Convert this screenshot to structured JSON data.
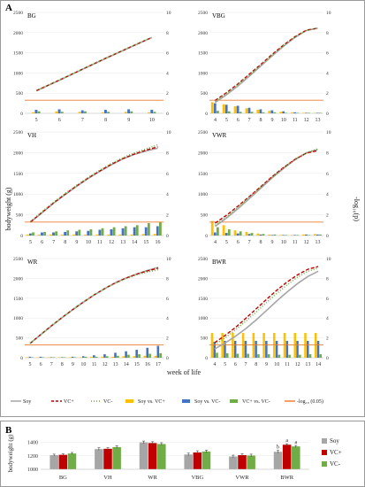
{
  "figure": {
    "panel_a_label": "A",
    "panel_b_label": "B",
    "left_axis_label": "bodyweight (g)",
    "right_axis_label": "-log₁₀(p)",
    "bottom_axis_label": "week of life"
  },
  "legend": {
    "items": [
      {
        "label": "Soy",
        "color": "#a6a6a6",
        "kind": "line-solid"
      },
      {
        "label": "VC+",
        "color": "#c00000",
        "kind": "line-dash"
      },
      {
        "label": "VC-",
        "color": "#70ad47",
        "kind": "line-dot"
      },
      {
        "label": "Soy vs. VC+",
        "color": "#ffc000",
        "kind": "bar"
      },
      {
        "label": "Soy vs. VC-",
        "color": "#4472c4",
        "kind": "bar"
      },
      {
        "label": "VC+ vs. VC-",
        "color": "#70ad47",
        "kind": "bar"
      },
      {
        "label": "-log₁₀ (0.05)",
        "color": "#ed7d31",
        "kind": "line-solid"
      }
    ]
  },
  "colors": {
    "soy": "#a6a6a6",
    "vcplus": "#c00000",
    "vcminus": "#70ad47",
    "soy_vs_vcplus": "#ffc000",
    "soy_vs_vcminus": "#4472c4",
    "vcplus_vs_vcminus": "#70ad47",
    "threshold": "#ed7d31"
  },
  "chart_data": [
    {
      "type": "line",
      "panel": "BG",
      "x": [
        5,
        6,
        7,
        8,
        9,
        10
      ],
      "ylim": [
        0,
        2500
      ],
      "y_ticks": [
        0,
        500,
        1000,
        1500,
        2000,
        2500
      ],
      "y2lim": [
        0,
        10
      ],
      "y2_ticks": [
        0,
        2,
        4,
        6,
        8,
        10
      ],
      "series": [
        {
          "name": "Soy",
          "values": [
            560,
            820,
            1090,
            1360,
            1620,
            1880
          ]
        },
        {
          "name": "VC+",
          "values": [
            560,
            825,
            1095,
            1365,
            1625,
            1880
          ]
        },
        {
          "name": "VC-",
          "values": [
            565,
            830,
            1100,
            1370,
            1630,
            1885
          ]
        }
      ],
      "pvalues": [
        {
          "name": "Soy vs. VC+",
          "values": [
            0.1,
            0.2,
            0.15,
            0.1,
            0.15,
            0.1
          ]
        },
        {
          "name": "Soy vs. VC-",
          "values": [
            0.35,
            0.4,
            0.3,
            0.35,
            0.4,
            0.35
          ]
        },
        {
          "name": "VC+ vs. VC-",
          "values": [
            0.2,
            0.15,
            0.2,
            0.15,
            0.2,
            0.15
          ]
        }
      ],
      "threshold": 1.3
    },
    {
      "type": "line",
      "panel": "VBG",
      "x": [
        4,
        5,
        6,
        7,
        8,
        9,
        10,
        11,
        12,
        13
      ],
      "ylim": [
        0,
        2500
      ],
      "y_ticks": [
        0,
        500,
        1000,
        1500,
        2000,
        2500
      ],
      "y2lim": [
        0,
        10
      ],
      "y2_ticks": [
        0,
        2,
        4,
        6,
        8,
        10
      ],
      "series": [
        {
          "name": "Soy",
          "values": [
            270,
            460,
            680,
            920,
            1170,
            1420,
            1660,
            1880,
            2050,
            2110
          ]
        },
        {
          "name": "VC+",
          "values": [
            320,
            510,
            730,
            970,
            1210,
            1460,
            1690,
            1900,
            2060,
            2110
          ]
        },
        {
          "name": "VC-",
          "values": [
            300,
            490,
            710,
            950,
            1195,
            1445,
            1680,
            1895,
            2055,
            2115
          ]
        }
      ],
      "pvalues": [
        {
          "name": "Soy vs. VC+",
          "values": [
            1.1,
            0.9,
            0.7,
            0.5,
            0.35,
            0.25,
            0.15,
            0.1,
            0.05,
            0.05
          ]
        },
        {
          "name": "Soy vs. VC-",
          "values": [
            1.0,
            0.85,
            0.75,
            0.55,
            0.4,
            0.3,
            0.2,
            0.1,
            0.05,
            0.05
          ]
        },
        {
          "name": "VC+ vs. VC-",
          "values": [
            0.25,
            0.2,
            0.15,
            0.15,
            0.1,
            0.1,
            0.05,
            0.05,
            0.05,
            0.05
          ]
        }
      ],
      "threshold": 1.3
    },
    {
      "type": "line",
      "panel": "VH",
      "x": [
        5,
        6,
        7,
        8,
        9,
        10,
        11,
        12,
        13,
        14,
        15,
        16
      ],
      "ylim": [
        0,
        2500
      ],
      "y_ticks": [
        0,
        500,
        1000,
        1500,
        2000,
        2500
      ],
      "y2lim": [
        0,
        10
      ],
      "y2_ticks": [
        0,
        2,
        4,
        6,
        8,
        10
      ],
      "series": [
        {
          "name": "Soy",
          "values": [
            320,
            550,
            780,
            990,
            1190,
            1380,
            1550,
            1710,
            1850,
            1960,
            2040,
            2110
          ]
        },
        {
          "name": "VC+",
          "values": [
            330,
            560,
            790,
            1000,
            1200,
            1390,
            1560,
            1720,
            1860,
            1970,
            2060,
            2140
          ]
        },
        {
          "name": "VC-",
          "values": [
            340,
            575,
            805,
            1015,
            1215,
            1405,
            1580,
            1740,
            1880,
            1995,
            2090,
            2190
          ]
        }
      ],
      "pvalues": [
        {
          "name": "Soy vs. VC+",
          "values": [
            0.1,
            0.1,
            0.1,
            0.1,
            0.1,
            0.1,
            0.1,
            0.1,
            0.1,
            0.1,
            0.15,
            0.15
          ]
        },
        {
          "name": "Soy vs. VC-",
          "values": [
            0.2,
            0.3,
            0.3,
            0.35,
            0.4,
            0.45,
            0.55,
            0.6,
            0.7,
            0.8,
            0.8,
            0.9
          ]
        },
        {
          "name": "VC+ vs. VC-",
          "values": [
            0.3,
            0.35,
            0.4,
            0.5,
            0.55,
            0.6,
            0.7,
            0.8,
            0.9,
            1.0,
            1.2,
            1.3
          ]
        }
      ],
      "threshold": 1.3
    },
    {
      "type": "line",
      "panel": "VWR",
      "x": [
        4,
        5,
        6,
        7,
        8,
        9,
        10,
        11,
        12,
        13
      ],
      "ylim": [
        0,
        2500
      ],
      "y_ticks": [
        0,
        500,
        1000,
        1500,
        2000,
        2500
      ],
      "y2lim": [
        0,
        10
      ],
      "y2_ticks": [
        0,
        2,
        4,
        6,
        8,
        10
      ],
      "series": [
        {
          "name": "Soy",
          "values": [
            220,
            420,
            650,
            890,
            1140,
            1390,
            1620,
            1830,
            1990,
            2080
          ]
        },
        {
          "name": "VC+",
          "values": [
            300,
            490,
            710,
            940,
            1180,
            1420,
            1640,
            1840,
            1990,
            2050
          ]
        },
        {
          "name": "VC-",
          "values": [
            250,
            450,
            680,
            920,
            1160,
            1405,
            1630,
            1840,
            2000,
            2090
          ]
        }
      ],
      "pvalues": [
        {
          "name": "Soy vs. VC+",
          "values": [
            1.4,
            1.0,
            0.5,
            0.35,
            0.2,
            0.1,
            0.05,
            0.05,
            0.1,
            0.15
          ]
        },
        {
          "name": "Soy vs. VC-",
          "values": [
            0.3,
            0.25,
            0.2,
            0.15,
            0.1,
            0.05,
            0.05,
            0.05,
            0.1,
            0.1
          ]
        },
        {
          "name": "VC+ vs. VC-",
          "values": [
            0.8,
            0.6,
            0.4,
            0.25,
            0.15,
            0.1,
            0.05,
            0.05,
            0.05,
            0.1
          ]
        }
      ],
      "threshold": 1.3
    },
    {
      "type": "line",
      "panel": "WR",
      "x": [
        5,
        6,
        7,
        8,
        9,
        10,
        11,
        12,
        13,
        14,
        15,
        16,
        17
      ],
      "ylim": [
        0,
        2500
      ],
      "y_ticks": [
        0,
        500,
        1000,
        1500,
        2000,
        2500
      ],
      "y2lim": [
        0,
        10
      ],
      "y2_ticks": [
        0,
        2,
        4,
        6,
        8,
        10
      ],
      "series": [
        {
          "name": "Soy",
          "values": [
            360,
            580,
            800,
            1010,
            1210,
            1400,
            1580,
            1740,
            1890,
            2010,
            2110,
            2200,
            2280
          ]
        },
        {
          "name": "VC+",
          "values": [
            360,
            585,
            805,
            1015,
            1215,
            1405,
            1585,
            1745,
            1890,
            2010,
            2110,
            2190,
            2260
          ]
        },
        {
          "name": "VC-",
          "values": [
            365,
            590,
            810,
            1020,
            1220,
            1410,
            1585,
            1740,
            1880,
            1995,
            2090,
            2160,
            2220
          ]
        }
      ],
      "pvalues": [
        {
          "name": "Soy vs. VC+",
          "values": [
            0.05,
            0.05,
            0.05,
            0.05,
            0.05,
            0.05,
            0.1,
            0.1,
            0.1,
            0.15,
            0.15,
            0.2,
            0.2
          ]
        },
        {
          "name": "Soy vs. VC-",
          "values": [
            0.1,
            0.1,
            0.05,
            0.05,
            0.1,
            0.15,
            0.25,
            0.35,
            0.5,
            0.65,
            0.8,
            1.0,
            1.2
          ]
        },
        {
          "name": "VC+ vs. VC-",
          "values": [
            0.05,
            0.05,
            0.05,
            0.05,
            0.05,
            0.1,
            0.1,
            0.15,
            0.2,
            0.3,
            0.35,
            0.4,
            0.45
          ]
        }
      ],
      "threshold": 1.3
    },
    {
      "type": "line",
      "panel": "BWR",
      "x": [
        4,
        5,
        6,
        7,
        8,
        9,
        10,
        11,
        12,
        13,
        14
      ],
      "ylim": [
        0,
        2500
      ],
      "y_ticks": [
        0,
        500,
        1000,
        1500,
        2000,
        2500
      ],
      "y2lim": [
        0,
        10
      ],
      "y2_ticks": [
        0,
        2,
        4,
        6,
        8,
        10
      ],
      "series": [
        {
          "name": "Soy",
          "values": [
            220,
            370,
            540,
            730,
            950,
            1190,
            1430,
            1660,
            1870,
            2050,
            2180
          ]
        },
        {
          "name": "VC+",
          "values": [
            380,
            560,
            760,
            990,
            1230,
            1470,
            1700,
            1910,
            2090,
            2230,
            2300
          ]
        },
        {
          "name": "VC-",
          "values": [
            330,
            500,
            700,
            920,
            1150,
            1390,
            1620,
            1840,
            2030,
            2180,
            2260
          ]
        }
      ],
      "pvalues": [
        {
          "name": "Soy vs. VC+",
          "values": [
            2.5,
            2.5,
            2.5,
            2.5,
            2.5,
            2.5,
            2.5,
            2.5,
            2.5,
            2.5,
            2.5
          ]
        },
        {
          "name": "Soy vs. VC-",
          "values": [
            1.6,
            1.7,
            1.7,
            1.7,
            1.7,
            1.7,
            1.7,
            1.7,
            1.7,
            1.7,
            1.7
          ]
        },
        {
          "name": "VC+ vs. VC-",
          "values": [
            0.5,
            0.45,
            0.4,
            0.4,
            0.35,
            0.35,
            0.3,
            0.3,
            0.3,
            0.35,
            0.35
          ]
        }
      ],
      "threshold": 1.3
    },
    {
      "type": "bar",
      "panel": "B",
      "categories": [
        "BG",
        "VH",
        "WR",
        "VBG",
        "VWR",
        "BWR"
      ],
      "ylabel": "bodyweight (g)",
      "ylim": [
        1000,
        1500
      ],
      "y_ticks": [
        1000,
        1200,
        1400
      ],
      "series": [
        {
          "name": "Soy",
          "values": [
            1210,
            1300,
            1400,
            1220,
            1190,
            1260
          ],
          "errors": [
            15,
            20,
            20,
            20,
            20,
            20
          ]
        },
        {
          "name": "VC+",
          "values": [
            1215,
            1305,
            1390,
            1250,
            1210,
            1365
          ],
          "errors": [
            15,
            15,
            20,
            25,
            20,
            15
          ]
        },
        {
          "name": "VC-",
          "values": [
            1235,
            1330,
            1375,
            1265,
            1205,
            1340
          ],
          "errors": [
            15,
            20,
            20,
            20,
            20,
            15
          ]
        }
      ],
      "significance": [
        {
          "category": "BWR",
          "series": "Soy",
          "label": "b"
        },
        {
          "category": "BWR",
          "series": "VC+",
          "label": "a"
        },
        {
          "category": "BWR",
          "series": "VC-",
          "label": "a"
        }
      ],
      "legend_position": "right"
    }
  ]
}
